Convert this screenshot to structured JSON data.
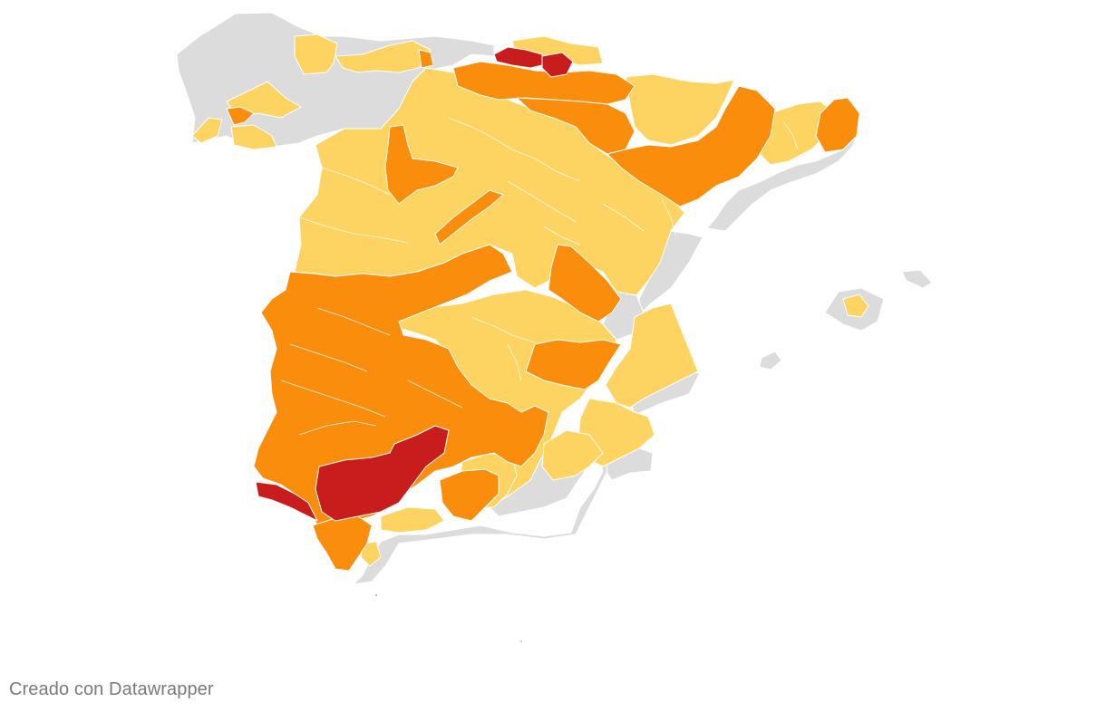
{
  "credit": {
    "text": "Creado con Datawrapper"
  },
  "map": {
    "type": "choropleth",
    "subject": "Spain regions",
    "legend_colors": {
      "no_data": "#dcdcdc",
      "level_1": "#fdd462",
      "level_2": "#fa8d0c",
      "level_3": "#c91c1c"
    },
    "region_counts_by_color": {
      "no_data": 17,
      "level_1": 23,
      "level_2": 19,
      "level_3": 3
    }
  }
}
